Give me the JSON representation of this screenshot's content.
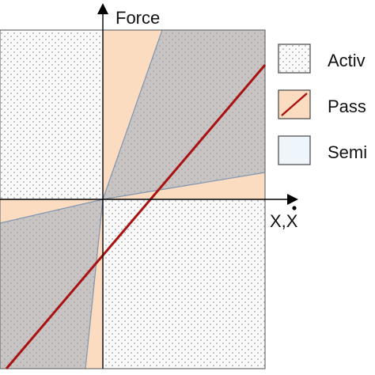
{
  "diagram": {
    "y_axis_label": "Force",
    "x_axis_label": "X,X",
    "legend": [
      {
        "label": "Activ",
        "swatch": "dotted"
      },
      {
        "label": "Pass",
        "swatch": "diagonal-line"
      },
      {
        "label": "Semi",
        "swatch": "light"
      }
    ],
    "colors": {
      "active_fill": "#fafafa",
      "passive_fill": "#fbdcc0",
      "semi_fill": "#c9c4c4",
      "line": "#aa1111",
      "ray": "#7f95b0",
      "axis": "#000000",
      "border": "#6f6f6f",
      "semi_legend_fill": "#eef5fb"
    }
  }
}
